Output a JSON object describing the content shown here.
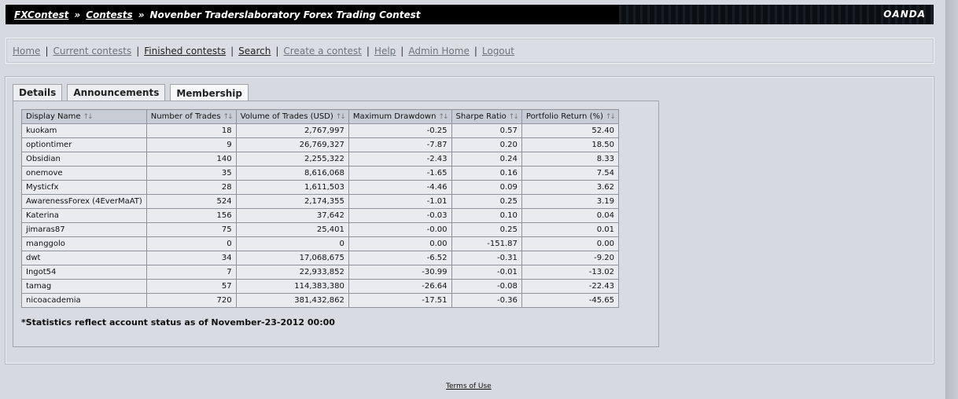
{
  "header": {
    "crumbs": [
      "FXContest",
      "Contests"
    ],
    "separator": "»",
    "title": "Novenber Traderslaboratory Forex Trading Contest",
    "brand": "OANDA"
  },
  "nav": {
    "items": [
      {
        "label": "Home",
        "style": "light"
      },
      {
        "label": "Current contests",
        "style": "light"
      },
      {
        "label": "Finished contests",
        "style": "dark"
      },
      {
        "label": "Search",
        "style": "dark"
      },
      {
        "label": "Create a contest",
        "style": "light"
      },
      {
        "label": "Help",
        "style": "light"
      },
      {
        "label": "Admin Home",
        "style": "light"
      },
      {
        "label": "Logout",
        "style": "light"
      }
    ],
    "separator": "|"
  },
  "tabs": [
    {
      "label": "Details",
      "active": false
    },
    {
      "label": "Announcements",
      "active": false
    },
    {
      "label": "Membership",
      "active": true
    }
  ],
  "table": {
    "headers": [
      "Display Name",
      "Number of Trades",
      "Volume of Trades (USD)",
      "Maximum Drawdown",
      "Sharpe Ratio",
      "Portfolio Return (%)"
    ],
    "sort_glyph": "↑↓",
    "rows": [
      [
        "kuokam",
        "18",
        "2,767,997",
        "-0.25",
        "0.57",
        "52.40"
      ],
      [
        "optiontimer",
        "9",
        "26,769,327",
        "-7.87",
        "0.20",
        "18.50"
      ],
      [
        "Obsidian",
        "140",
        "2,255,322",
        "-2.43",
        "0.24",
        "8.33"
      ],
      [
        "onemove",
        "35",
        "8,616,068",
        "-1.65",
        "0.16",
        "7.54"
      ],
      [
        "Mysticfx",
        "28",
        "1,611,503",
        "-4.46",
        "0.09",
        "3.62"
      ],
      [
        "AwarenessForex (4EverMaAT)",
        "524",
        "2,174,355",
        "-1.01",
        "0.25",
        "3.19"
      ],
      [
        "Katerina",
        "156",
        "37,642",
        "-0.03",
        "0.10",
        "0.04"
      ],
      [
        "jimaras87",
        "75",
        "25,401",
        "-0.00",
        "0.25",
        "0.01"
      ],
      [
        "manggolo",
        "0",
        "0",
        "0.00",
        "-151.87",
        "0.00"
      ],
      [
        "dwt",
        "34",
        "17,068,675",
        "-6.52",
        "-0.31",
        "-9.20"
      ],
      [
        "Ingot54",
        "7",
        "22,933,852",
        "-30.99",
        "-0.01",
        "-13.02"
      ],
      [
        "tamag",
        "57",
        "114,383,380",
        "-26.64",
        "-0.08",
        "-22.43"
      ],
      [
        "nicoacademia",
        "720",
        "381,432,862",
        "-17.51",
        "-0.36",
        "-45.65"
      ]
    ]
  },
  "note": "*Statistics reflect account status as of November-23-2012 00:00",
  "footer": {
    "link": "Terms of Use"
  }
}
